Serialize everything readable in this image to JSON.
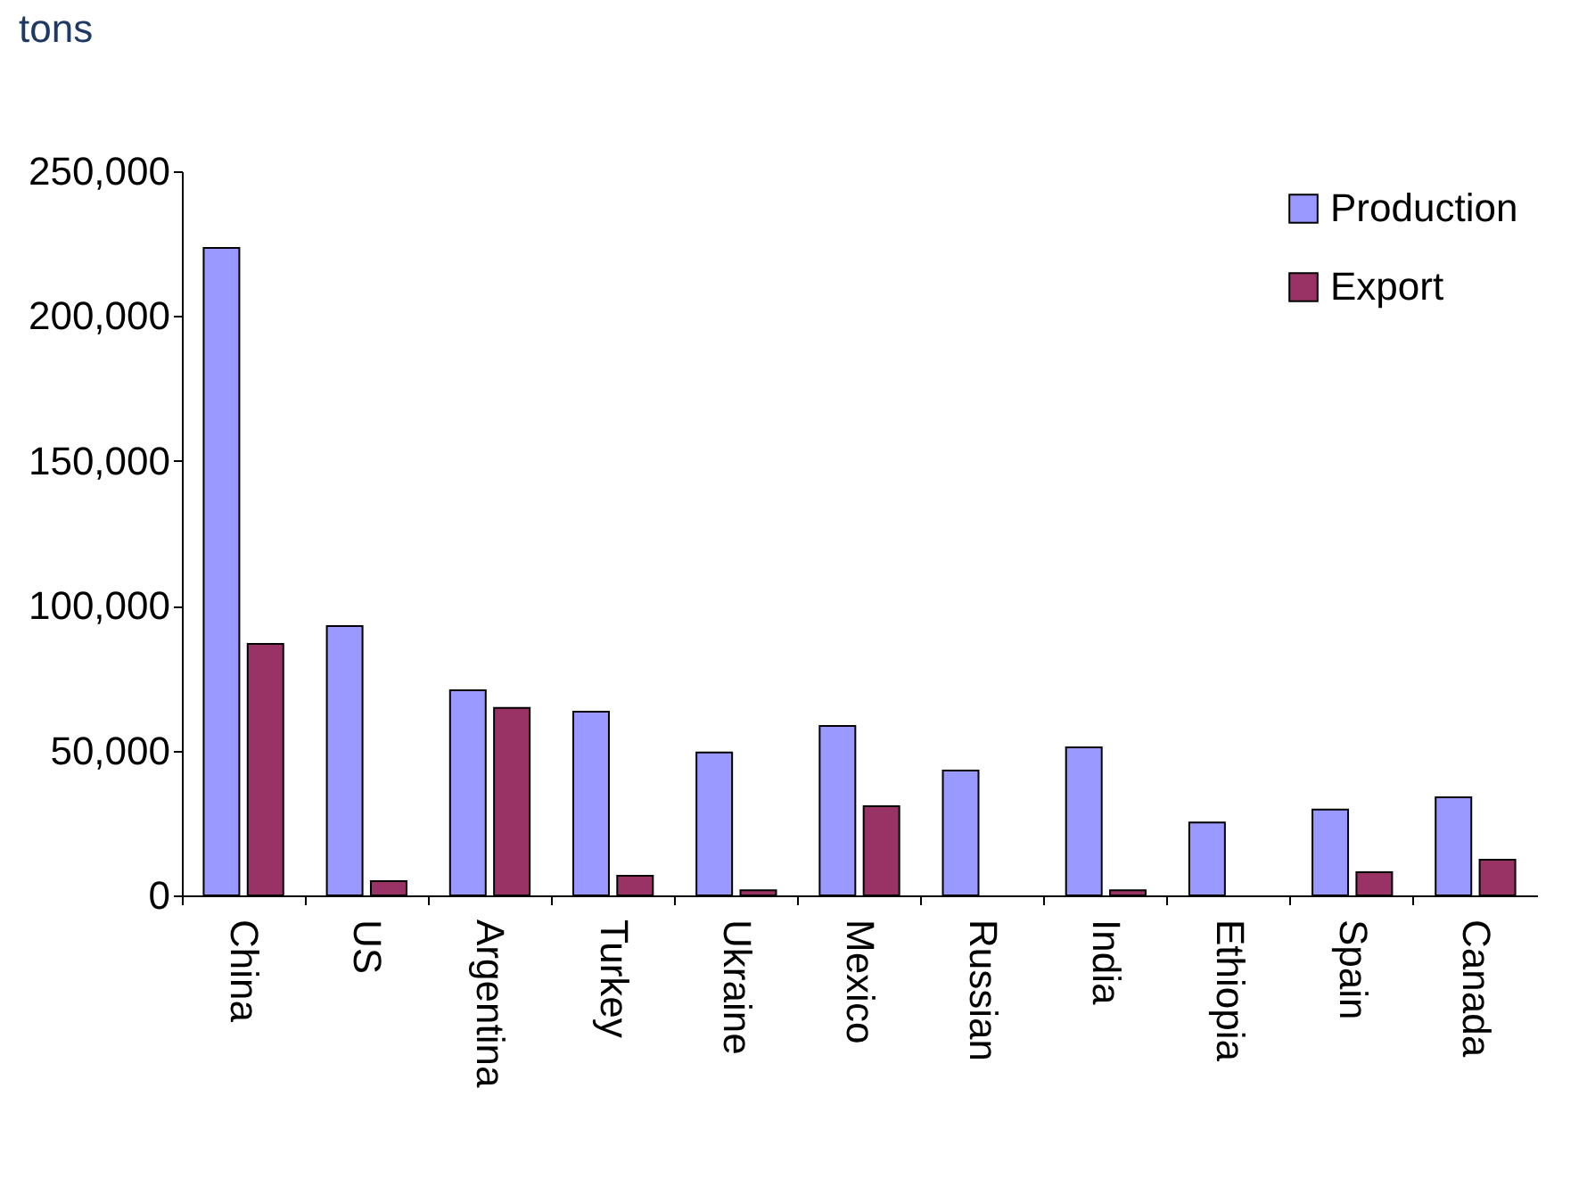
{
  "chart_data": {
    "type": "bar",
    "ylabel": "tons",
    "categories": [
      "China",
      "US",
      "Argentina",
      "Turkey",
      "Ukraine",
      "Mexico",
      "Russian",
      "India",
      "Ethiopia",
      "Spain",
      "Canada"
    ],
    "series": [
      {
        "name": "Production",
        "color": "#9999ff",
        "values": [
          223500,
          93000,
          70800,
          63400,
          49300,
          58500,
          43100,
          51100,
          25200,
          29600,
          33900
        ]
      },
      {
        "name": "Export",
        "color": "#993366",
        "values": [
          86800,
          4900,
          64700,
          6800,
          1800,
          30800,
          null,
          1800,
          null,
          8000,
          12300
        ]
      }
    ],
    "ylim": [
      0,
      250000
    ],
    "yticks": [
      0,
      {
        "value": 50000,
        "label": "50,000"
      },
      {
        "value": 100000,
        "label": "100,000"
      },
      {
        "value": 150000,
        "label": "150,000"
      },
      {
        "value": 200000,
        "label": "200,000"
      },
      {
        "value": 250000,
        "label": "250,000"
      }
    ],
    "grid": false,
    "legend": "top right"
  }
}
